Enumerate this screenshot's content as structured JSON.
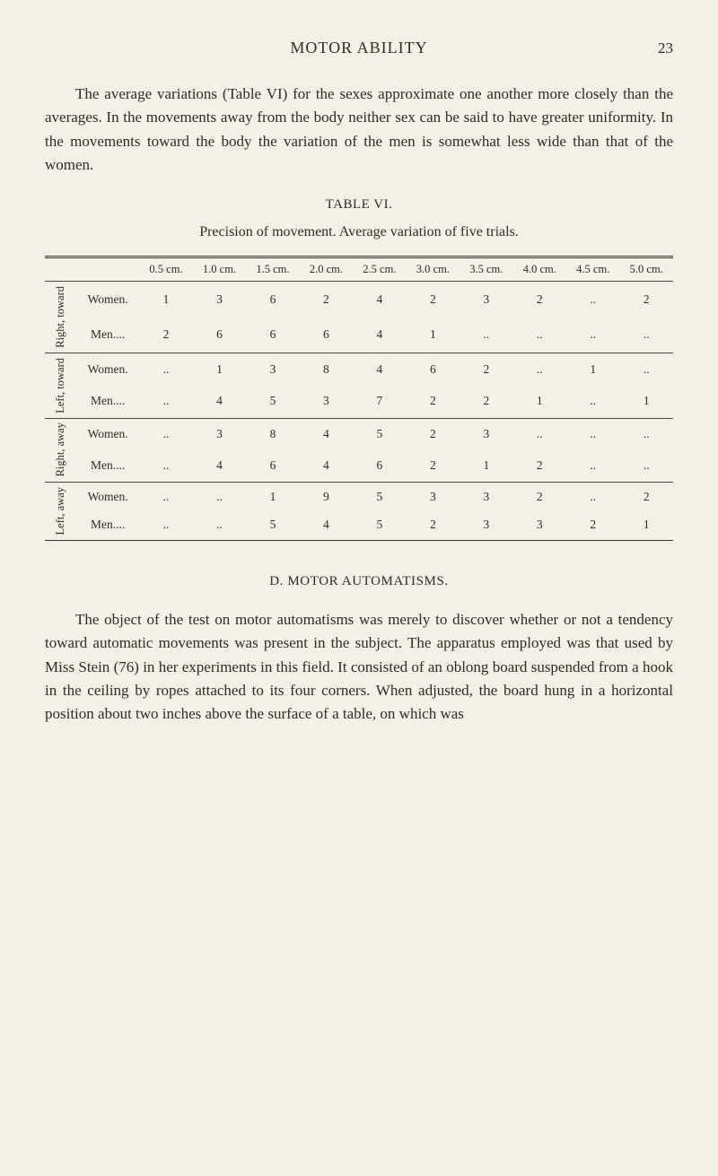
{
  "header": {
    "running_head": "MOTOR ABILITY",
    "page_number": "23"
  },
  "paragraph1": "The average variations (Table VI) for the sexes approximate one another more closely than the averages. In the movements away from the body neither sex can be said to have greater uniformity. In the movements toward the body the variation of the men is somewhat less wide than that of the women.",
  "table": {
    "label": "TABLE VI.",
    "caption": "Precision of movement.  Average variation of five trials.",
    "column_headers": [
      "0.5 cm.",
      "1.0 cm.",
      "1.5 cm.",
      "2.0 cm.",
      "2.5 cm.",
      "3.0 cm.",
      "3.5 cm.",
      "4.0 cm.",
      "4.5 cm.",
      "5.0 cm."
    ],
    "groups": [
      {
        "side": "Right, toward",
        "rows": [
          {
            "label": "Women.",
            "cells": [
              "1",
              "3",
              "6",
              "2",
              "4",
              "2",
              "3",
              "2",
              "..",
              "2"
            ]
          },
          {
            "label": "Men....",
            "cells": [
              "2",
              "6",
              "6",
              "6",
              "4",
              "1",
              "..",
              "..",
              "..",
              ".."
            ]
          }
        ]
      },
      {
        "side": "Left, toward",
        "rows": [
          {
            "label": "Women.",
            "cells": [
              "..",
              "1",
              "3",
              "8",
              "4",
              "6",
              "2",
              "..",
              "1",
              ".."
            ]
          },
          {
            "label": "Men....",
            "cells": [
              "..",
              "4",
              "5",
              "3",
              "7",
              "2",
              "2",
              "1",
              "..",
              "1"
            ]
          }
        ]
      },
      {
        "side": "Right, away",
        "rows": [
          {
            "label": "Women.",
            "cells": [
              "..",
              "3",
              "8",
              "4",
              "5",
              "2",
              "3",
              "..",
              "..",
              ".."
            ]
          },
          {
            "label": "Men....",
            "cells": [
              "..",
              "4",
              "6",
              "4",
              "6",
              "2",
              "1",
              "2",
              "..",
              ".."
            ]
          }
        ]
      },
      {
        "side": "Left, away",
        "rows": [
          {
            "label": "Women.",
            "cells": [
              "..",
              "..",
              "1",
              "9",
              "5",
              "3",
              "3",
              "2",
              "..",
              "2"
            ]
          },
          {
            "label": "Men....",
            "cells": [
              "..",
              "..",
              "5",
              "4",
              "5",
              "2",
              "3",
              "3",
              "2",
              "1"
            ]
          }
        ]
      }
    ]
  },
  "section_d_title": "D.   MOTOR AUTOMATISMS.",
  "paragraph2": "The object of the test on motor automatisms was merely to discover whether or not a tendency toward automatic movements was present in the subject. The apparatus employed was that used by Miss Stein (76) in her experiments in this field. It consisted of an oblong board suspended from a hook in the ceiling by ropes attached to its four corners. When adjusted, the board hung in a horizontal position about two inches above the surface of a table, on which was",
  "styles": {
    "background_color": "#f5f0e6",
    "text_color": "#2b2b2b",
    "body_font_size_pt": 13,
    "table_font_size_pt": 10,
    "rule_color": "#444"
  }
}
